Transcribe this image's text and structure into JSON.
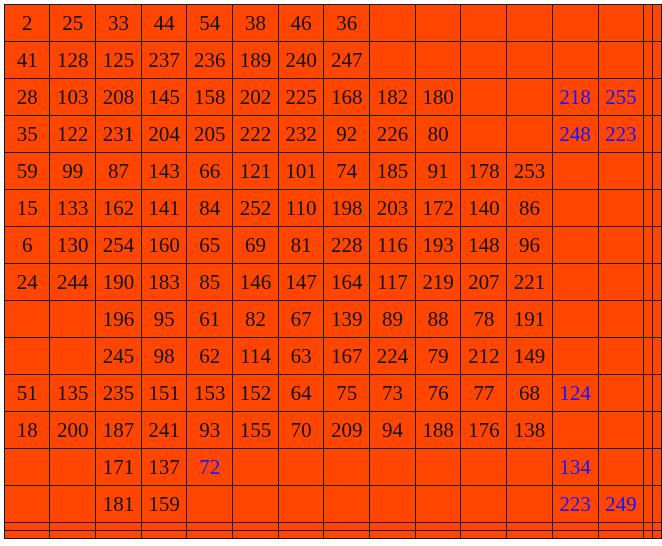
{
  "colors": {
    "cell_background": "#ff4500",
    "text": "#111111",
    "highlight_text": "#1515ff",
    "border": "#1a1a1a"
  },
  "rows": [
    [
      "2",
      "25",
      "33",
      "44",
      "54",
      "38",
      "46",
      "36",
      "",
      "",
      "",
      "",
      "",
      "",
      "",
      ""
    ],
    [
      "41",
      "128",
      "125",
      "237",
      "236",
      "189",
      "240",
      "247",
      "",
      "",
      "",
      "",
      "",
      "",
      "",
      ""
    ],
    [
      "28",
      "103",
      "208",
      "145",
      "158",
      "202",
      "225",
      "168",
      "182",
      "180",
      "",
      "",
      "218",
      "255",
      "",
      ""
    ],
    [
      "35",
      "122",
      "231",
      "204",
      "205",
      "222",
      "232",
      "92",
      "226",
      "80",
      "",
      "",
      "248",
      "223",
      "",
      ""
    ],
    [
      "59",
      "99",
      "87",
      "143",
      "66",
      "121",
      "101",
      "74",
      "185",
      "91",
      "178",
      "253",
      "",
      "",
      "",
      ""
    ],
    [
      "15",
      "133",
      "162",
      "141",
      "84",
      "252",
      "110",
      "198",
      "203",
      "172",
      "140",
      "86",
      "",
      "",
      "",
      ""
    ],
    [
      "6",
      "130",
      "254",
      "160",
      "65",
      "69",
      "81",
      "228",
      "116",
      "193",
      "148",
      "96",
      "",
      "",
      "",
      ""
    ],
    [
      "24",
      "244",
      "190",
      "183",
      "85",
      "146",
      "147",
      "164",
      "117",
      "219",
      "207",
      "221",
      "",
      "",
      "",
      ""
    ],
    [
      "",
      "",
      "196",
      "95",
      "61",
      "82",
      "67",
      "139",
      "89",
      "88",
      "78",
      "191",
      "",
      "",
      "",
      ""
    ],
    [
      "",
      "",
      "245",
      "98",
      "62",
      "114",
      "63",
      "167",
      "224",
      "79",
      "212",
      "149",
      "",
      "",
      "",
      ""
    ],
    [
      "51",
      "135",
      "235",
      "151",
      "153",
      "152",
      "64",
      "75",
      "73",
      "76",
      "77",
      "68",
      "124",
      "",
      "",
      ""
    ],
    [
      "18",
      "200",
      "187",
      "241",
      "93",
      "155",
      "70",
      "209",
      "94",
      "188",
      "176",
      "138",
      "",
      "",
      "",
      ""
    ],
    [
      "",
      "",
      "171",
      "137",
      "72",
      "",
      "",
      "",
      "",
      "",
      "",
      "",
      "134",
      "",
      "",
      ""
    ],
    [
      "",
      "",
      "181",
      "159",
      "",
      "",
      "",
      "",
      "",
      "",
      "",
      "",
      "223",
      "249",
      "",
      ""
    ],
    [
      "",
      "",
      "",
      "",
      "",
      "",
      "",
      "",
      "",
      "",
      "",
      "",
      "",
      "",
      "",
      ""
    ],
    [
      "",
      "",
      "",
      "",
      "",
      "",
      "",
      "",
      "",
      "",
      "",
      "",
      "",
      "",
      "",
      ""
    ]
  ],
  "blue_cells": [
    [
      2,
      12
    ],
    [
      2,
      13
    ],
    [
      3,
      12
    ],
    [
      3,
      13
    ],
    [
      10,
      12
    ],
    [
      12,
      4
    ],
    [
      12,
      12
    ],
    [
      13,
      12
    ],
    [
      13,
      13
    ]
  ]
}
